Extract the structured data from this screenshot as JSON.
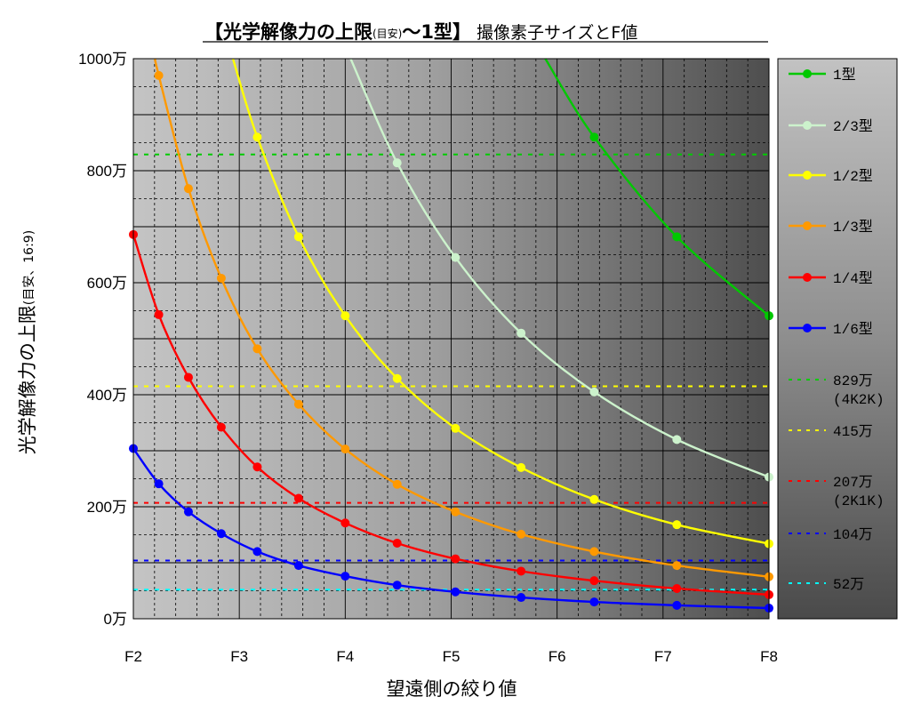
{
  "chart_data": {
    "type": "line",
    "title_main_prefix": "【光学解像力の上限",
    "title_paren": "(目安)",
    "title_main_suffix": "〜1型】",
    "title_rest": "撮像素子サイズとF値",
    "xlabel": "望遠側の絞り値",
    "ylabel": "光学解像力の上限",
    "ylabel_paren": "(目安、16:9)",
    "x_ticks": [
      "F2",
      "F3",
      "F4",
      "F5",
      "F6",
      "F7",
      "F8"
    ],
    "y_ticks": [
      "0万",
      "200万",
      "400万",
      "600万",
      "800万",
      "1000万"
    ],
    "xlim": [
      2,
      8
    ],
    "ylim": [
      0,
      1000
    ],
    "y_unit": "万",
    "x": [
      2.0,
      2.24,
      2.52,
      2.83,
      3.17,
      3.56,
      4.0,
      4.49,
      5.04,
      5.66,
      6.35,
      7.13,
      8.0
    ],
    "series": [
      {
        "name": "1型",
        "color": "#00c800",
        "marker": "circle",
        "values": [
          null,
          null,
          null,
          null,
          null,
          null,
          null,
          null,
          null,
          null,
          860,
          682,
          541
        ]
      },
      {
        "name": "2/3型",
        "color": "#ccf2cc",
        "marker": "circle",
        "values": [
          null,
          null,
          null,
          null,
          null,
          null,
          null,
          814,
          645,
          510,
          405,
          320,
          253
        ]
      },
      {
        "name": "1/2型",
        "color": "#ffff00",
        "marker": "circle",
        "values": [
          null,
          null,
          null,
          null,
          860,
          682,
          541,
          429,
          340,
          270,
          213,
          168,
          134
        ]
      },
      {
        "name": "1/3型",
        "color": "#ff9900",
        "marker": "circle",
        "values": [
          null,
          970,
          768,
          608,
          482,
          383,
          303,
          240,
          191,
          151,
          120,
          95,
          75
        ]
      },
      {
        "name": "1/4型",
        "color": "#ff0000",
        "marker": "circle",
        "values": [
          686,
          543,
          431,
          342,
          271,
          215,
          171,
          135,
          107,
          85,
          68,
          54,
          43
        ]
      },
      {
        "name": "1/6型",
        "color": "#0000ff",
        "marker": "circle",
        "values": [
          304,
          241,
          191,
          152,
          120,
          95,
          76,
          60,
          48,
          38,
          30,
          24,
          19
        ]
      }
    ],
    "reference_lines": [
      {
        "label": "829万",
        "sublabel": "(4K2K)",
        "value": 829,
        "color": "#00cc00",
        "style": "dashed"
      },
      {
        "label": "415万",
        "sublabel": "",
        "value": 415,
        "color": "#ffff00",
        "style": "dashed"
      },
      {
        "label": "207万",
        "sublabel": "(2K1K)",
        "value": 207,
        "color": "#ff0000",
        "style": "dashed"
      },
      {
        "label": "104万",
        "sublabel": "",
        "value": 104,
        "color": "#0000ff",
        "style": "dashed"
      },
      {
        "label": "52万",
        "sublabel": "",
        "value": 52,
        "color": "#00ffff",
        "style": "dashed"
      }
    ],
    "grid": true,
    "background": "gradient light-gray to dark-gray (left to right)",
    "legend_placement": "right"
  }
}
